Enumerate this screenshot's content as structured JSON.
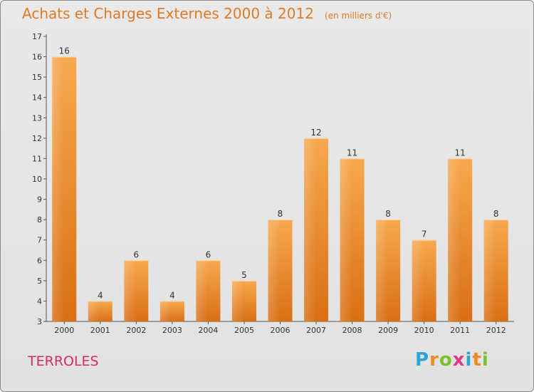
{
  "chart_data": {
    "type": "bar",
    "title": "Achats et Charges Externes 2000 à 2012",
    "subtitle": "(en milliers d'€)",
    "categories": [
      "2000",
      "2001",
      "2002",
      "2003",
      "2004",
      "2005",
      "2006",
      "2007",
      "2008",
      "2009",
      "2010",
      "2011",
      "2012"
    ],
    "values": [
      16,
      4,
      6,
      4,
      6,
      5,
      8,
      12,
      11,
      8,
      7,
      11,
      8
    ],
    "ylim": [
      3,
      17
    ],
    "yticks": [
      3,
      4,
      5,
      6,
      7,
      8,
      9,
      10,
      11,
      12,
      13,
      14,
      15,
      16,
      17
    ],
    "grid": false,
    "colors": {
      "bar_light": "#f7a94f",
      "bar_dark": "#d96f14",
      "text": "#333333",
      "title": "#e07a24"
    }
  },
  "location": "TERROLES",
  "logo": {
    "text": "Proxiti",
    "letters": [
      "P",
      "r",
      "o",
      "x",
      "i",
      "t",
      "i"
    ],
    "letter_colors": [
      "#2aa5d8",
      "#f08a1e",
      "#7cbf2a",
      "#e03b8a",
      "#2aa5d8",
      "#f08a1e",
      "#7cbf2a"
    ]
  }
}
